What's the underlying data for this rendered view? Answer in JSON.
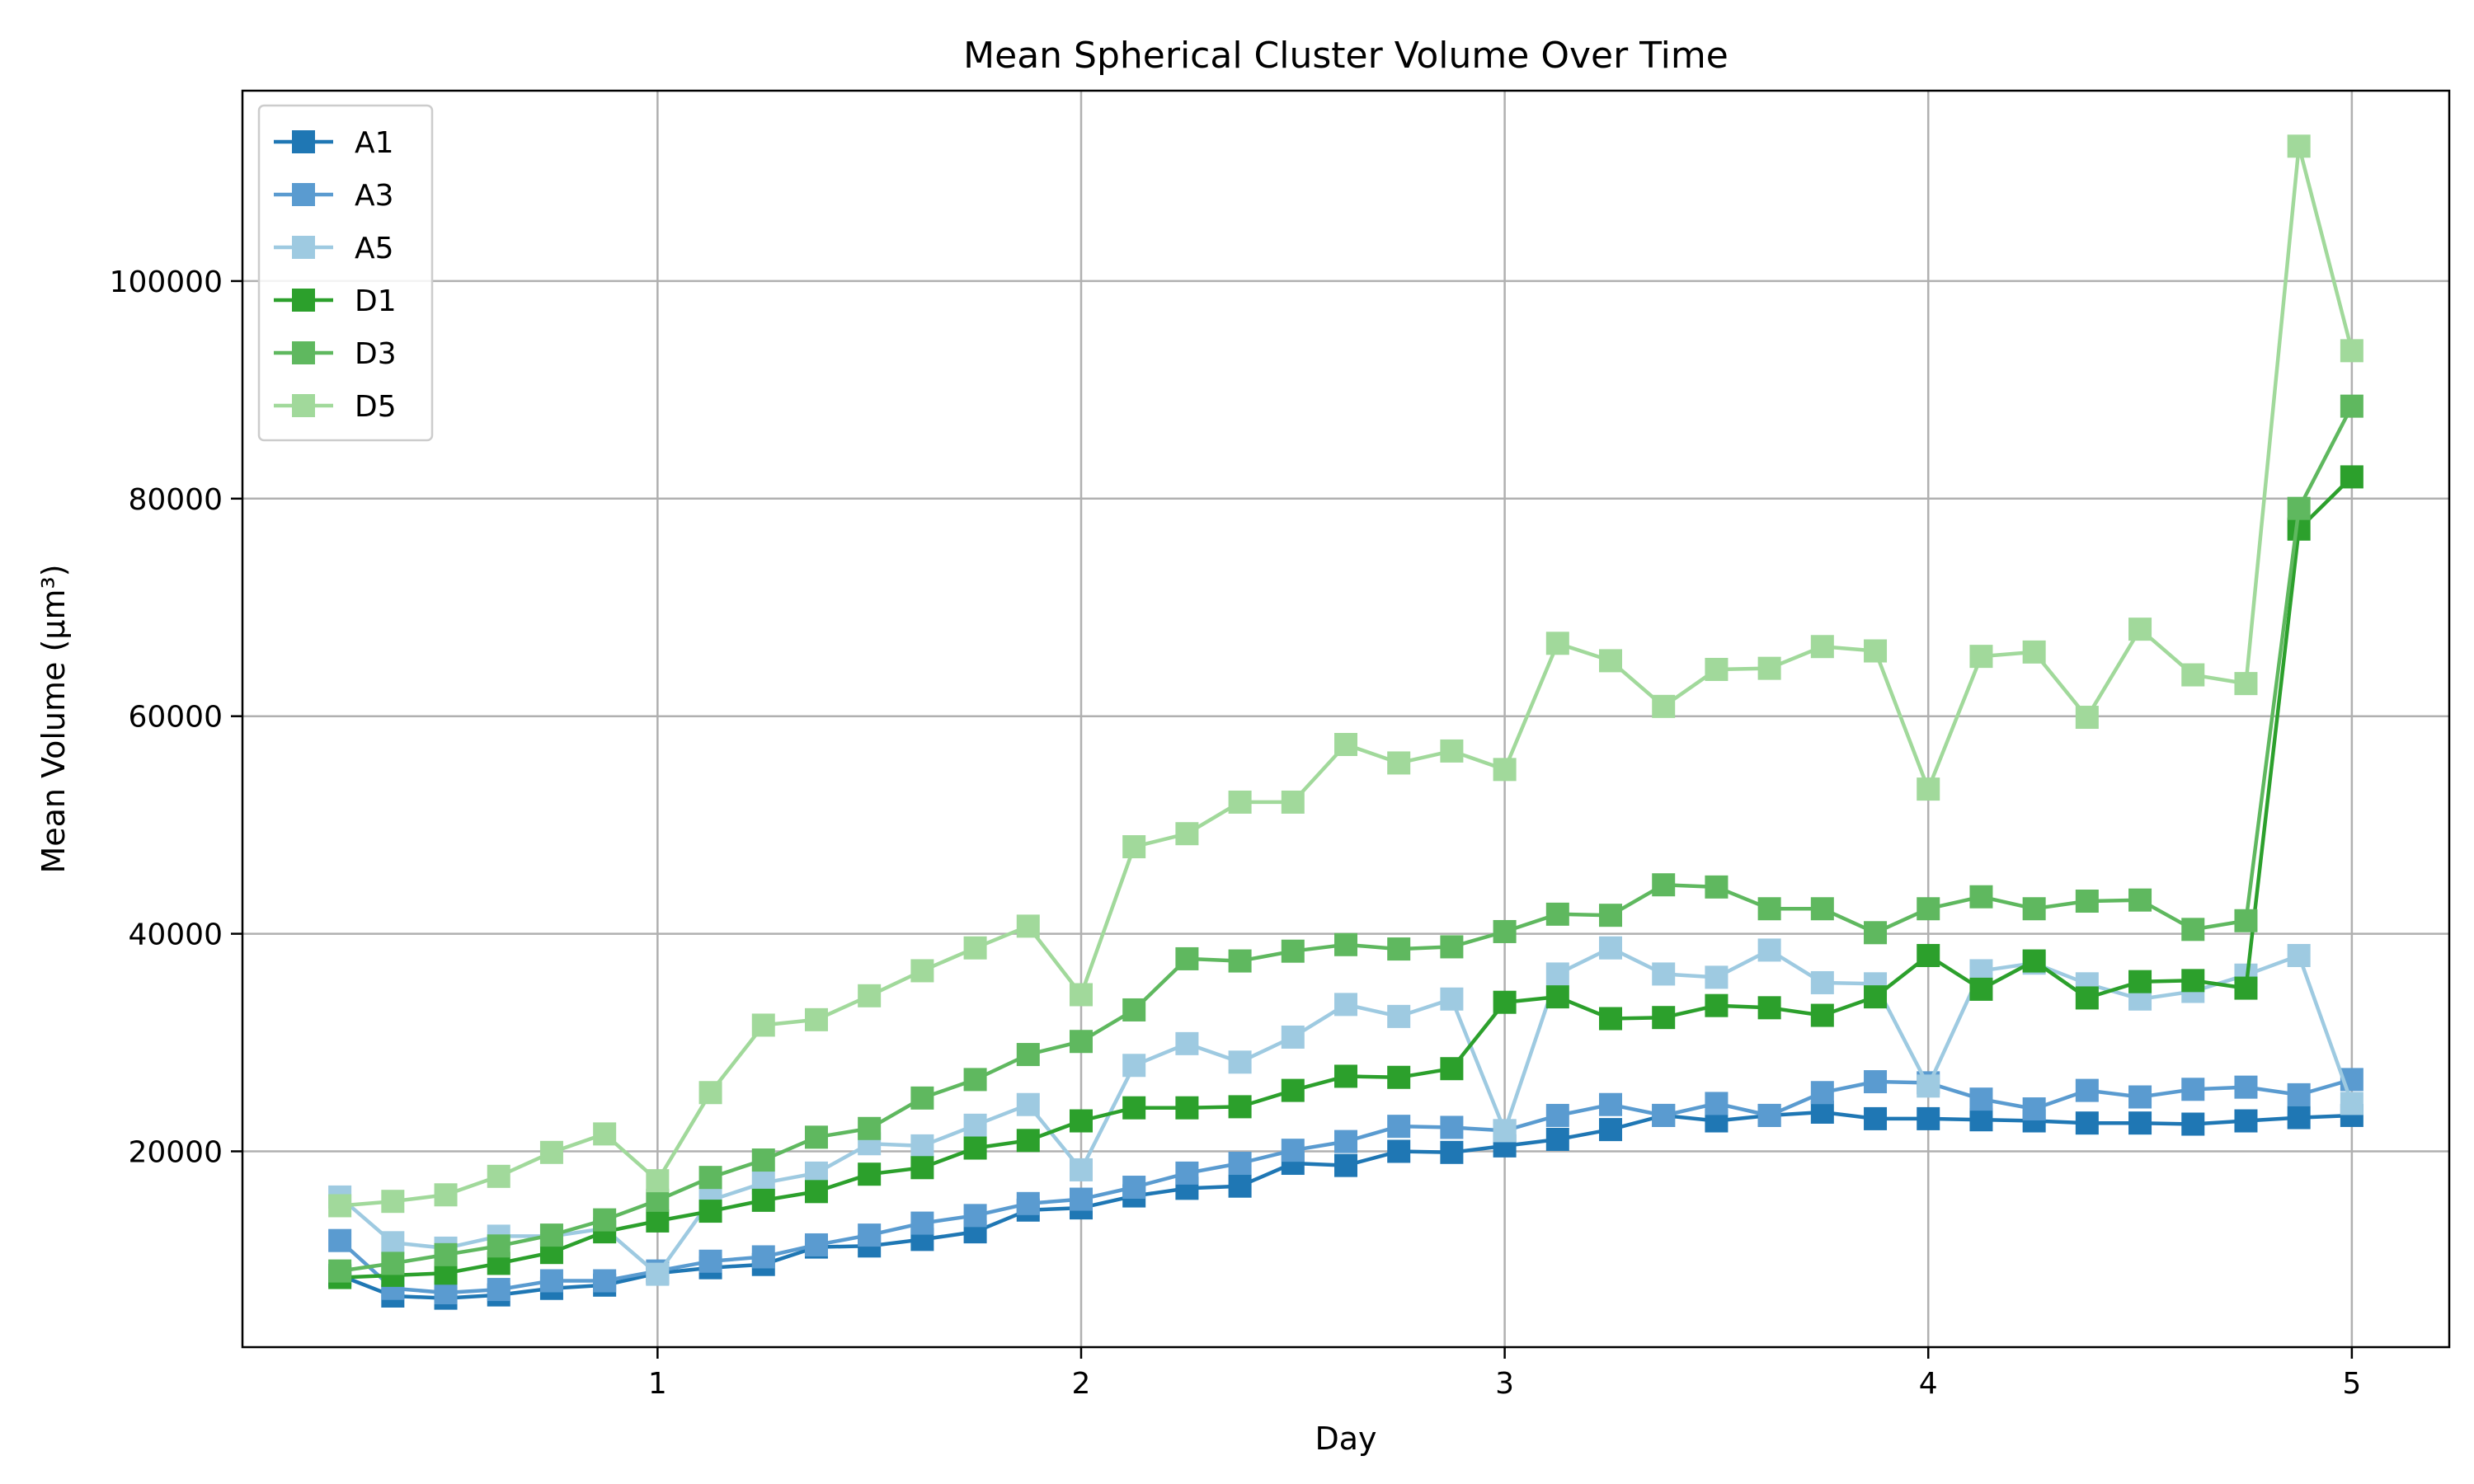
{
  "chart_data": {
    "type": "line",
    "title": "Mean Spherical Cluster Volume Over Time",
    "xlabel": "Day",
    "ylabel": "Mean Volume (µm³)",
    "xlim": [
      0.02,
      5.23
    ],
    "ylim": [
      2000,
      117500
    ],
    "xticks": [
      1,
      2,
      3,
      4,
      5
    ],
    "yticks": [
      20000,
      40000,
      60000,
      80000,
      100000
    ],
    "xtick_labels": [
      "1",
      "2",
      "3",
      "4",
      "5"
    ],
    "ytick_labels": [
      "20000",
      "40000",
      "60000",
      "80000",
      "100000"
    ],
    "grid": true,
    "legend_position": "top-left",
    "marker": "square",
    "x": [
      0.25,
      0.375,
      0.5,
      0.625,
      0.75,
      0.875,
      1.0,
      1.125,
      1.25,
      1.375,
      1.5,
      1.625,
      1.75,
      1.875,
      2.0,
      2.125,
      2.25,
      2.375,
      2.5,
      2.625,
      2.75,
      2.875,
      3.0,
      3.125,
      3.25,
      3.375,
      3.5,
      3.625,
      3.75,
      3.875,
      4.0,
      4.125,
      4.25,
      4.375,
      4.5,
      4.625,
      4.75,
      4.875,
      5.0
    ],
    "series": [
      {
        "name": "A1",
        "color": "#1f77b4",
        "values": [
          8600,
          6700,
          6500,
          6800,
          7400,
          7700,
          8800,
          9300,
          9600,
          11200,
          11300,
          11900,
          12600,
          14600,
          14800,
          15900,
          16600,
          16800,
          18900,
          18700,
          20000,
          19900,
          20500,
          21100,
          22000,
          23300,
          22800,
          23300,
          23600,
          23000,
          23000,
          22900,
          22800,
          22600,
          22600,
          22500,
          22800,
          23100,
          23300
        ]
      },
      {
        "name": "A3",
        "color": "#5a9bd0",
        "values": [
          11800,
          7400,
          7000,
          7300,
          8100,
          8100,
          9000,
          9900,
          10300,
          11400,
          12300,
          13400,
          14100,
          15200,
          15600,
          16700,
          18000,
          18900,
          20100,
          20900,
          22300,
          22200,
          21900,
          23300,
          24300,
          23300,
          24400,
          23300,
          25400,
          26400,
          26300,
          24800,
          23900,
          25600,
          25000,
          25700,
          25900,
          25200,
          26600
        ]
      },
      {
        "name": "A5",
        "color": "#9ecae1",
        "values": [
          15800,
          11600,
          11100,
          12200,
          12200,
          12900,
          8700,
          15500,
          17100,
          18000,
          20700,
          20500,
          22400,
          24300,
          18300,
          27900,
          29900,
          28200,
          30500,
          33500,
          32400,
          34000,
          21900,
          36300,
          38700,
          36300,
          36000,
          38500,
          35500,
          35400,
          26000,
          36600,
          37300,
          35400,
          34000,
          34700,
          36200,
          38000,
          24400
        ]
      },
      {
        "name": "D1",
        "color": "#2ca02c",
        "values": [
          8400,
          8600,
          8800,
          9700,
          10700,
          12600,
          13600,
          14500,
          15500,
          16300,
          17900,
          18500,
          20300,
          21000,
          22800,
          24000,
          24000,
          24100,
          25600,
          26900,
          26800,
          27600,
          33700,
          34200,
          32200,
          32300,
          33400,
          33200,
          32500,
          34200,
          38000,
          34900,
          37500,
          34100,
          35600,
          35700,
          35000,
          77200,
          82000
        ]
      },
      {
        "name": "D3",
        "color": "#5fb85f",
        "values": [
          9000,
          9700,
          10500,
          11300,
          12300,
          13700,
          15500,
          17600,
          19200,
          21300,
          22100,
          24900,
          26600,
          28900,
          30100,
          33000,
          37700,
          37500,
          38400,
          39000,
          38600,
          38800,
          40200,
          41800,
          41700,
          44500,
          44300,
          42300,
          42300,
          40100,
          42300,
          43400,
          42300,
          43000,
          43100,
          40400,
          41200,
          79100,
          88500
        ]
      },
      {
        "name": "D5",
        "color": "#a1d99b",
        "values": [
          15000,
          15400,
          16000,
          17700,
          19900,
          21600,
          17300,
          25400,
          31600,
          32100,
          34300,
          36600,
          38700,
          40700,
          34400,
          48000,
          49200,
          52100,
          52100,
          57400,
          55700,
          56800,
          55100,
          66700,
          65100,
          60900,
          64300,
          64400,
          66400,
          66000,
          53300,
          65500,
          65900,
          59900,
          68000,
          63800,
          63000,
          112400,
          93600
        ]
      }
    ]
  }
}
